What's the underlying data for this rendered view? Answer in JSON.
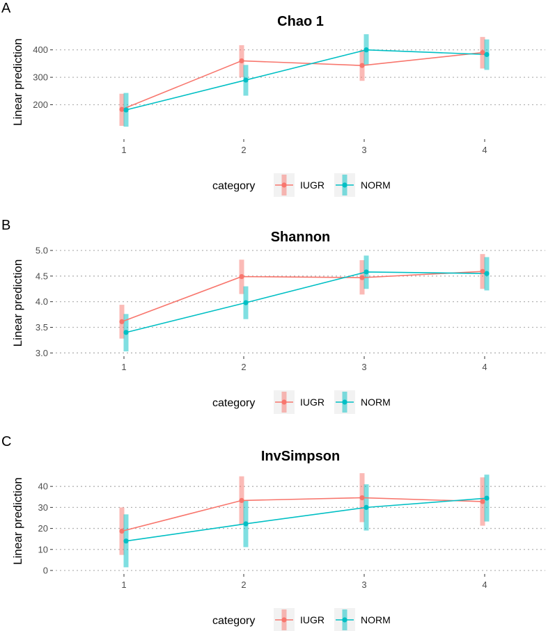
{
  "chart_data": [
    {
      "type": "line",
      "panel_label": "A",
      "title": "Chao 1",
      "xlabel": "",
      "ylabel": "Linear prediction",
      "categories": [
        "1",
        "2",
        "3",
        "4"
      ],
      "ylim": [
        105,
        460
      ],
      "yticks": [
        200,
        300,
        400
      ],
      "grid": "horizontal dotted",
      "series": [
        {
          "name": "IUGR",
          "color": "#F8766D",
          "values": [
            183,
            360,
            343,
            390
          ],
          "lower": [
            123,
            300,
            287,
            332
          ],
          "upper": [
            240,
            417,
            400,
            447
          ]
        },
        {
          "name": "NORM",
          "color": "#00BFC4",
          "values": [
            181,
            290,
            400,
            383
          ],
          "lower": [
            120,
            233,
            343,
            327
          ],
          "upper": [
            243,
            345,
            457,
            438
          ]
        }
      ],
      "legend": {
        "title": "category",
        "position": "bottom"
      }
    },
    {
      "type": "line",
      "panel_label": "B",
      "title": "Shannon",
      "xlabel": "",
      "ylabel": "Linear prediction",
      "categories": [
        "1",
        "2",
        "3",
        "4"
      ],
      "ylim": [
        2.95,
        5.0
      ],
      "yticks": [
        3.0,
        3.5,
        4.0,
        4.5,
        5.0
      ],
      "grid": "horizontal dotted",
      "series": [
        {
          "name": "IUGR",
          "color": "#F8766D",
          "values": [
            3.61,
            4.49,
            4.47,
            4.59
          ],
          "lower": [
            3.28,
            4.15,
            4.14,
            4.25
          ],
          "upper": [
            3.94,
            4.82,
            4.81,
            4.93
          ]
        },
        {
          "name": "NORM",
          "color": "#00BFC4",
          "values": [
            3.4,
            3.98,
            4.58,
            4.55
          ],
          "lower": [
            3.03,
            3.66,
            4.25,
            4.22
          ],
          "upper": [
            3.76,
            4.3,
            4.9,
            4.87
          ]
        }
      ],
      "legend": {
        "title": "category",
        "position": "bottom"
      }
    },
    {
      "type": "line",
      "panel_label": "C",
      "title": "InvSimpson",
      "xlabel": "",
      "ylabel": "Linear prediction",
      "categories": [
        "1",
        "2",
        "3",
        "4"
      ],
      "ylim": [
        -1,
        48
      ],
      "yticks": [
        0,
        10,
        20,
        30,
        40
      ],
      "grid": "horizontal dotted",
      "series": [
        {
          "name": "IUGR",
          "color": "#F8766D",
          "values": [
            18.7,
            33.3,
            34.6,
            32.8
          ],
          "lower": [
            7.4,
            21.8,
            23.0,
            21.3
          ],
          "upper": [
            30.0,
            44.8,
            46.3,
            44.3
          ]
        },
        {
          "name": "NORM",
          "color": "#00BFC4",
          "values": [
            14.0,
            22.2,
            30.0,
            34.4
          ],
          "lower": [
            1.5,
            11.1,
            19.0,
            23.3
          ],
          "upper": [
            26.7,
            33.4,
            41.0,
            45.6
          ]
        }
      ],
      "legend": {
        "title": "category",
        "position": "bottom"
      }
    }
  ]
}
